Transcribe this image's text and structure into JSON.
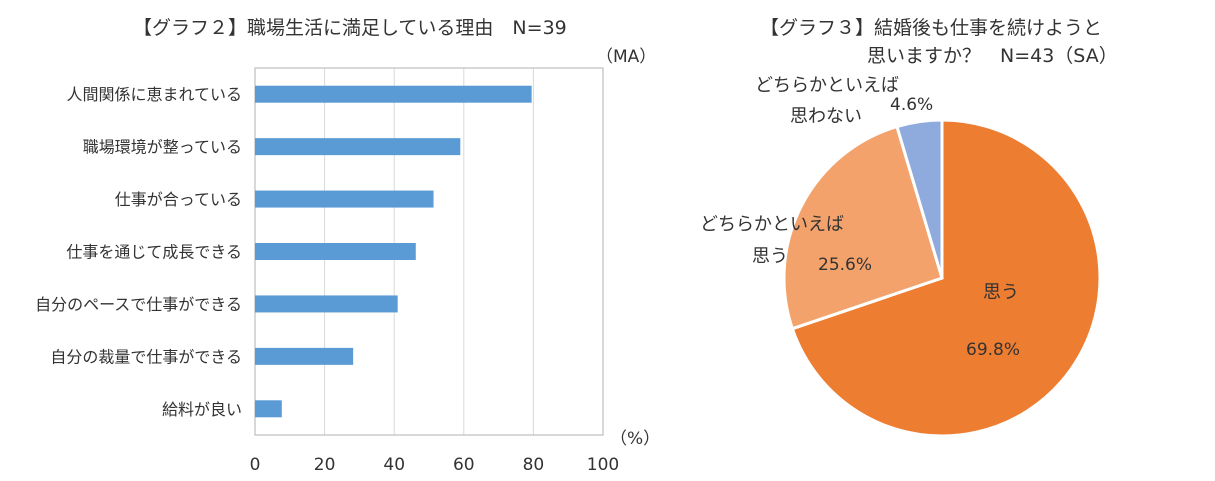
{
  "chart_data": [
    {
      "type": "bar",
      "orientation": "horizontal",
      "title": "【グラフ２】職場生活に満足している理由　N=39",
      "note": "（MA）",
      "unit_label": "（%）",
      "categories": [
        "人間関係に恵まれている",
        "職場環境が整っている",
        "仕事が合っている",
        "仕事を通じて成長できる",
        "自分のペースで仕事ができる",
        "自分の裁量で仕事ができる",
        "給料が良い"
      ],
      "values": [
        79.5,
        59.0,
        51.3,
        46.2,
        41.0,
        28.2,
        7.7
      ],
      "xlim": [
        0,
        100
      ],
      "xticks": [
        0,
        20,
        40,
        60,
        80,
        100
      ],
      "grid": true,
      "bar_color": "#5b9bd5"
    },
    {
      "type": "pie",
      "title_line1": "【グラフ３】結婚後も仕事を続けようと",
      "title_line2": "思いますか？　N=43（SA）",
      "slices": [
        {
          "label": "思う",
          "value": 69.8,
          "value_label": "69.8%",
          "color": "#ed7d31"
        },
        {
          "label_line1": "どちらかといえば",
          "label_line2": "思う",
          "value": 25.6,
          "value_label": "25.6%",
          "color": "#f4a26b"
        },
        {
          "label_line1": "どちらかといえば",
          "label_line2": "思わない",
          "value": 4.6,
          "value_label": "4.6%",
          "color": "#8faadc"
        }
      ]
    }
  ]
}
